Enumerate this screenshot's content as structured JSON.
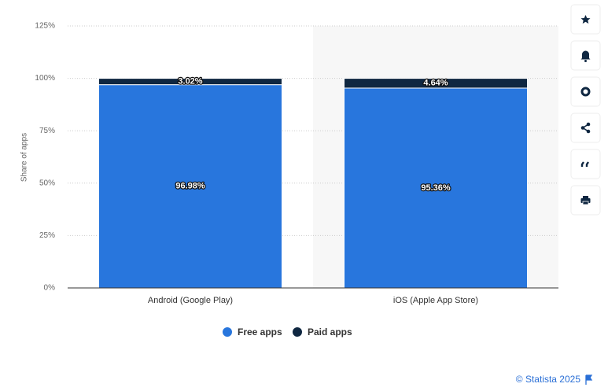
{
  "chart_data": {
    "type": "stacked_bar",
    "y_label": "Share of apps",
    "categories": [
      "Android (Google Play)",
      "iOS (Apple App Store)"
    ],
    "series": [
      {
        "name": "Free apps",
        "color": "#2876dd",
        "values": [
          96.98,
          95.36
        ],
        "value_labels": [
          "96.98%",
          "95.36%"
        ]
      },
      {
        "name": "Paid apps",
        "color": "#0f2741",
        "values": [
          3.02,
          4.64
        ],
        "value_labels": [
          "3.02%",
          "4.64%"
        ]
      }
    ],
    "ylim": [
      0,
      125
    ],
    "yticks": [
      {
        "value": 0,
        "label": "0%"
      },
      {
        "value": 25,
        "label": "25%"
      },
      {
        "value": 50,
        "label": "50%"
      },
      {
        "value": 75,
        "label": "75%"
      },
      {
        "value": 100,
        "label": "100%"
      },
      {
        "value": 125,
        "label": "125%"
      }
    ],
    "grid": true,
    "credit": "© Statista 2025"
  }
}
